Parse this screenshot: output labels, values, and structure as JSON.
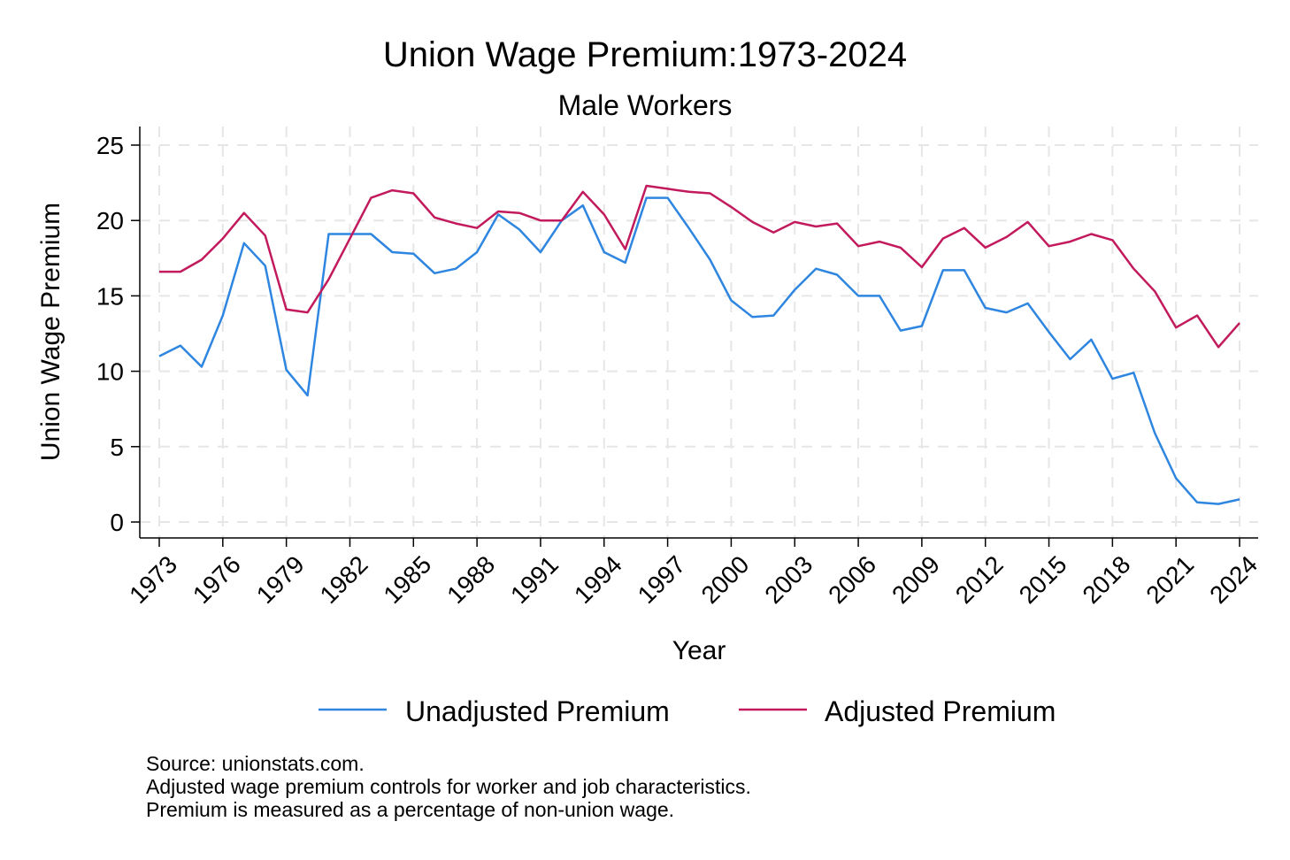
{
  "chart_data": {
    "type": "line",
    "title": "Union Wage Premium:1973-2024",
    "subtitle": "Male Workers",
    "xlabel": "Year",
    "ylabel": "Union Wage Premium",
    "ylim": [
      0,
      25
    ],
    "yticks": [
      0,
      5,
      10,
      15,
      20,
      25
    ],
    "xticks": [
      1973,
      1976,
      1979,
      1982,
      1985,
      1988,
      1991,
      1994,
      1997,
      2000,
      2003,
      2006,
      2009,
      2012,
      2015,
      2018,
      2021,
      2024
    ],
    "xtick_labels": [
      "1973",
      "1976",
      "1979",
      "1982",
      "1985",
      "1988",
      "1991",
      "1994",
      "1997",
      "2000",
      "2003",
      "2006",
      "2009",
      "2012",
      "2015",
      "2018",
      "2021",
      "2024"
    ],
    "ytick_labels": [
      "0",
      "5",
      "10",
      "15",
      "20",
      "25"
    ],
    "grid": true,
    "legend_position": "bottom",
    "x": [
      1973,
      1974,
      1975,
      1976,
      1977,
      1978,
      1979,
      1980,
      1981,
      1983,
      1984,
      1985,
      1986,
      1987,
      1988,
      1989,
      1990,
      1991,
      1992,
      1993,
      1994,
      1995,
      1996,
      1997,
      1998,
      1999,
      2000,
      2001,
      2002,
      2003,
      2004,
      2005,
      2006,
      2007,
      2008,
      2009,
      2010,
      2011,
      2012,
      2013,
      2014,
      2015,
      2016,
      2017,
      2018,
      2019,
      2020,
      2021,
      2022,
      2023,
      2024
    ],
    "series": [
      {
        "name": "Unadjusted Premium",
        "color": "#2e86e0",
        "values": [
          11.0,
          11.7,
          10.3,
          13.7,
          18.5,
          17.0,
          10.1,
          8.4,
          19.1,
          19.1,
          17.9,
          17.8,
          16.5,
          16.8,
          17.9,
          20.4,
          19.4,
          17.9,
          20.0,
          21.0,
          17.9,
          17.2,
          21.5,
          21.5,
          19.5,
          17.4,
          14.7,
          13.6,
          13.7,
          15.4,
          16.8,
          16.4,
          15.0,
          15.0,
          12.7,
          13.0,
          16.7,
          16.7,
          14.2,
          13.9,
          14.5,
          12.6,
          10.8,
          12.1,
          9.5,
          9.9,
          5.9,
          2.9,
          1.3,
          1.2,
          1.5
        ]
      },
      {
        "name": "Adjusted Premium",
        "color": "#c21a5c",
        "values": [
          16.6,
          16.6,
          17.4,
          18.8,
          20.5,
          19.0,
          14.1,
          13.9,
          16.1,
          21.5,
          22.0,
          21.8,
          20.2,
          19.8,
          19.5,
          20.6,
          20.5,
          20.0,
          20.0,
          21.9,
          20.4,
          18.1,
          22.3,
          22.1,
          21.9,
          21.8,
          20.9,
          19.9,
          19.2,
          19.9,
          19.6,
          19.8,
          18.3,
          18.6,
          18.2,
          16.9,
          18.8,
          19.5,
          18.2,
          18.9,
          19.9,
          18.3,
          18.6,
          19.1,
          18.7,
          16.8,
          15.3,
          12.9,
          13.7,
          11.6,
          13.2
        ]
      }
    ],
    "notes": [
      "Source: unionstats.com.",
      "Adjusted wage premium controls for worker and job characteristics.",
      "Premium is measured as a percentage of non-union wage."
    ]
  }
}
